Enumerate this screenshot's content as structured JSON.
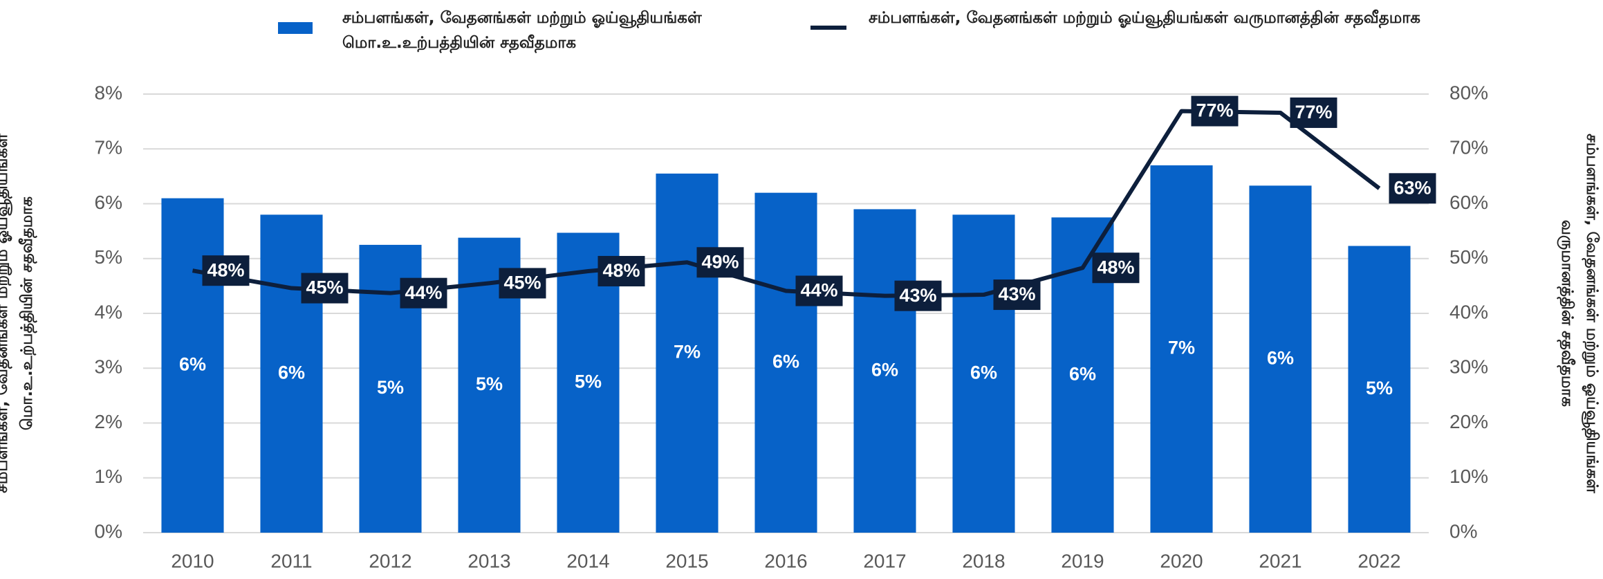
{
  "chart_data": {
    "type": "bar",
    "y_label": "சம்பளங்கள், வேதனங்கள் மற்றும் ஓய்வூதியங்கள் மொ.உ.உற்பத்தியின் சதவீதமாக",
    "y2_label": "சம்பளங்கள், வேதனங்கள் மற்றும் ஓய்வூதியங்கள் வருமானத்தின் சதவீதமாக",
    "categories": [
      "2010",
      "2011",
      "2012",
      "2013",
      "2014",
      "2015",
      "2016",
      "2017",
      "2018",
      "2019",
      "2020",
      "2021",
      "2022"
    ],
    "series": [
      {
        "name": "சம்பளங்கள், வேதனங்கள் மற்றும் ஓய்வூதியங்கள் மொ.உ.உற்பத்தியின் சதவீதமாக",
        "type": "bar",
        "color": "#0762c8",
        "values": [
          6.1,
          5.8,
          5.25,
          5.38,
          5.47,
          6.55,
          6.2,
          5.9,
          5.8,
          5.75,
          6.7,
          6.33,
          5.23
        ],
        "value_labels": [
          "6%",
          "6%",
          "5%",
          "5%",
          "5%",
          "7%",
          "6%",
          "6%",
          "6%",
          "6%",
          "7%",
          "6%",
          "5%"
        ]
      },
      {
        "name": "சம்பளங்கள், வேதனங்கள் மற்றும் ஓய்வூதியங்கள் வருமானத்தின் சதவீதமாக",
        "type": "line",
        "axis": "y2",
        "color": "#0d1f3c",
        "values": [
          47.8,
          44.6,
          43.7,
          45.5,
          47.7,
          49.3,
          44.1,
          43.2,
          43.4,
          48.3,
          76.9,
          76.6,
          62.8
        ],
        "value_labels": [
          "48%",
          "45%",
          "44%",
          "45%",
          "48%",
          "49%",
          "44%",
          "43%",
          "43%",
          "48%",
          "77%",
          "77%",
          "63%"
        ]
      }
    ],
    "ylim": [
      0,
      8
    ],
    "yticks": [
      {
        "value": 0,
        "label": "0%"
      },
      {
        "value": 1,
        "label": "1%"
      },
      {
        "value": 2,
        "label": "2%"
      },
      {
        "value": 3,
        "label": "3%"
      },
      {
        "value": 4,
        "label": "4%"
      },
      {
        "value": 5,
        "label": "5%"
      },
      {
        "value": 6,
        "label": "6%"
      },
      {
        "value": 7,
        "label": "7%"
      },
      {
        "value": 8,
        "label": "8%"
      }
    ],
    "y2lim": [
      0,
      80
    ],
    "y2ticks": [
      {
        "value": 0,
        "label": "0%"
      },
      {
        "value": 10,
        "label": "10%"
      },
      {
        "value": 20,
        "label": "20%"
      },
      {
        "value": 30,
        "label": "30%"
      },
      {
        "value": 40,
        "label": "40%"
      },
      {
        "value": 50,
        "label": "50%"
      },
      {
        "value": 60,
        "label": "60%"
      },
      {
        "value": 70,
        "label": "70%"
      },
      {
        "value": 80,
        "label": "80%"
      }
    ],
    "grid": true,
    "legend": "top"
  }
}
